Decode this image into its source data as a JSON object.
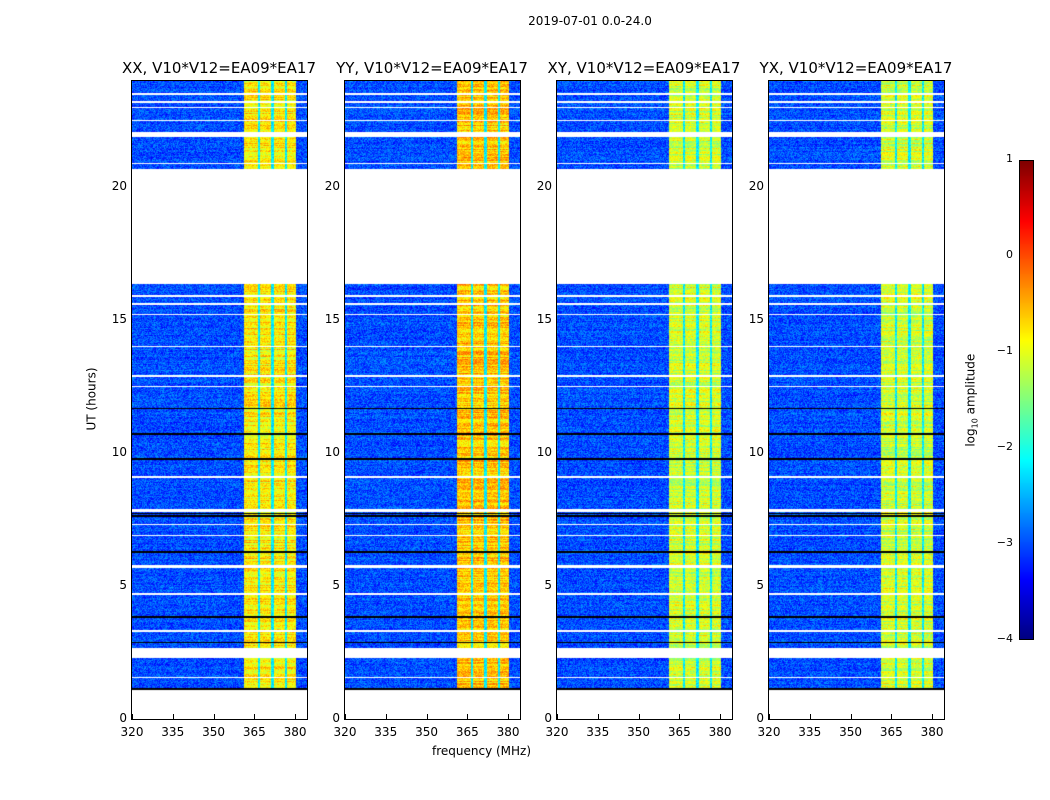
{
  "title": "2019-07-01 0.0-24.0",
  "chart_data": {
    "type": "heatmap",
    "title": "2019-07-01 0.0-24.0",
    "panels": [
      {
        "title": "XX, V10*V12=EA09*EA17",
        "band_level": -0.8
      },
      {
        "title": "YY, V10*V12=EA09*EA17",
        "band_level": -0.6
      },
      {
        "title": "XY, V10*V12=EA09*EA17",
        "band_level": -1.1
      },
      {
        "title": "YX, V10*V12=EA09*EA17",
        "band_level": -1.1
      }
    ],
    "xlabel": "frequency (MHz)",
    "ylabel": "UT (hours)",
    "xlim": [
      320,
      384.4
    ],
    "ylim": [
      0,
      24
    ],
    "xticks": [
      "320",
      "335",
      "350",
      "365",
      "380"
    ],
    "xtick_values": [
      320,
      335,
      350,
      365,
      380
    ],
    "yticks": [
      "0",
      "5",
      "10",
      "15",
      "20"
    ],
    "ytick_values": [
      0,
      5,
      10,
      15,
      20
    ],
    "background_level": -3.0,
    "band_range": [
      361,
      380
    ],
    "band_gaps": [
      366.5,
      371.5,
      376.5
    ],
    "data_segments": [
      [
        1.1,
        2.3
      ],
      [
        2.7,
        16.4
      ],
      [
        20.7,
        24
      ]
    ],
    "white_gaps": [
      [
        1.55,
        1.6
      ],
      [
        3.3,
        3.35
      ],
      [
        4.7,
        4.75
      ],
      [
        5.7,
        5.8
      ],
      [
        6.9,
        6.95
      ],
      [
        7.3,
        7.35
      ],
      [
        7.8,
        7.9
      ],
      [
        9.1,
        9.15
      ],
      [
        12.5,
        12.55
      ],
      [
        12.9,
        12.95
      ],
      [
        14.0,
        14.05
      ],
      [
        15.2,
        15.25
      ],
      [
        15.6,
        15.65
      ],
      [
        15.9,
        15.95
      ],
      [
        20.9,
        20.95
      ],
      [
        21.9,
        22.1
      ],
      [
        22.5,
        22.55
      ],
      [
        23.0,
        23.05
      ],
      [
        23.2,
        23.25
      ],
      [
        23.5,
        23.55
      ]
    ],
    "black_lines": [
      1.15,
      2.9,
      3.85,
      6.3,
      7.65,
      7.75,
      9.8,
      10.75,
      11.7,
      22.0
    ],
    "colorbar": {
      "label": "log10 amplitude",
      "label_main": "log",
      "label_sub": "10",
      "label_rest": " amplitude",
      "range": [
        -4,
        1
      ],
      "ticks": [
        "1",
        "0",
        "−1",
        "−2",
        "−3",
        "−4"
      ],
      "tick_values": [
        1,
        0,
        -1,
        -2,
        -3,
        -4
      ],
      "colormap": "jet"
    }
  }
}
